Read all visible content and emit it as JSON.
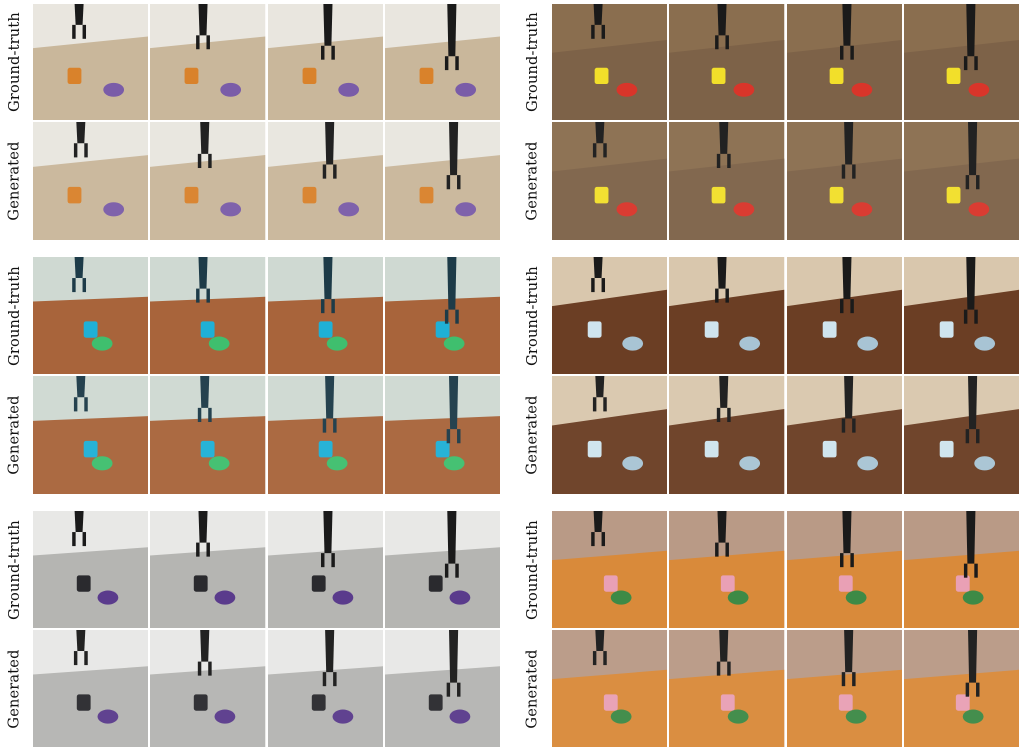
{
  "row_labels": {
    "gt": "Ground-truth",
    "gen": "Generated"
  },
  "scenes": [
    {
      "id": "kitchen-sink-orange",
      "palette": {
        "bg": "#e9e6df",
        "floor": "#c9b79b",
        "accent1": "#d9822b",
        "accent2": "#7a5ca8",
        "robot": "#1a1a1a"
      }
    },
    {
      "id": "block-stacking",
      "palette": {
        "bg": "#8a6e4f",
        "floor": "#7d6248",
        "accent1": "#f2df2a",
        "accent2": "#d9352a",
        "robot": "#1a1a1a"
      }
    },
    {
      "id": "tabletop-teal-cloth",
      "palette": {
        "bg": "#cfd9d2",
        "floor": "#a8643b",
        "accent1": "#1fb0d6",
        "accent2": "#3fbf6e",
        "robot": "#1d3b48"
      }
    },
    {
      "id": "cloth-folding",
      "palette": {
        "bg": "#d9c7ad",
        "floor": "#6b3e24",
        "accent1": "#cfe4ee",
        "accent2": "#a8c4d4",
        "robot": "#1a1a1a"
      }
    },
    {
      "id": "stove-pot",
      "palette": {
        "bg": "#e8e8e6",
        "floor": "#b5b5b2",
        "accent1": "#2a2a2e",
        "accent2": "#5a3b8c",
        "robot": "#1a1a1a"
      }
    },
    {
      "id": "wooden-counter-toy",
      "palette": {
        "bg": "#b99a86",
        "floor": "#d98a3a",
        "accent1": "#e9a0b5",
        "accent2": "#3d8a46",
        "robot": "#1a1a1a"
      }
    }
  ]
}
